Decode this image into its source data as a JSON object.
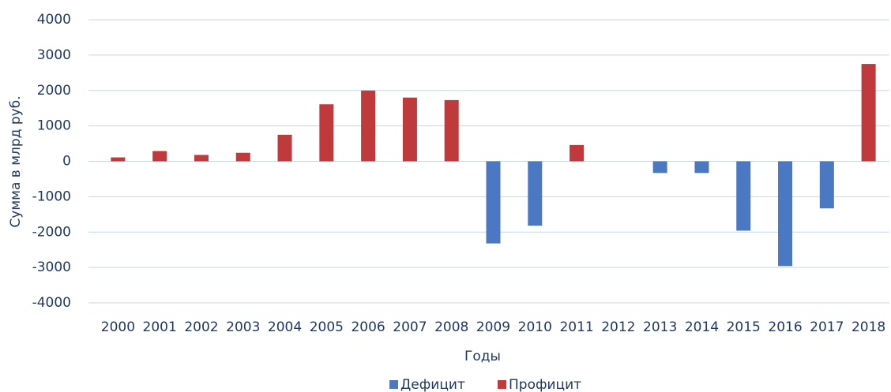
{
  "chart_data": {
    "type": "bar",
    "xlabel": "Годы",
    "ylabel": "Сумма в млрд руб.",
    "categories": [
      "2000",
      "2001",
      "2002",
      "2003",
      "2004",
      "2005",
      "2006",
      "2007",
      "2008",
      "2009",
      "2010",
      "2011",
      "2012",
      "2013",
      "2014",
      "2015",
      "2016",
      "2017",
      "2018"
    ],
    "series": [
      {
        "name": "Дефицит",
        "color": "#4a78c2",
        "values": [
          null,
          null,
          null,
          null,
          null,
          null,
          null,
          null,
          null,
          -2320,
          -1820,
          null,
          null,
          -330,
          -330,
          -1960,
          -2960,
          -1330,
          null
        ]
      },
      {
        "name": "Профицит",
        "color": "#c0393b",
        "values": [
          110,
          290,
          180,
          240,
          750,
          1610,
          2000,
          1800,
          1730,
          null,
          null,
          460,
          null,
          null,
          null,
          null,
          null,
          null,
          2750
        ]
      }
    ],
    "ylim": [
      -4000,
      4000
    ],
    "yticks": [
      -4000,
      -3000,
      -2000,
      -1000,
      0,
      1000,
      2000,
      3000,
      4000
    ],
    "grid": true,
    "legend": "bottom"
  }
}
